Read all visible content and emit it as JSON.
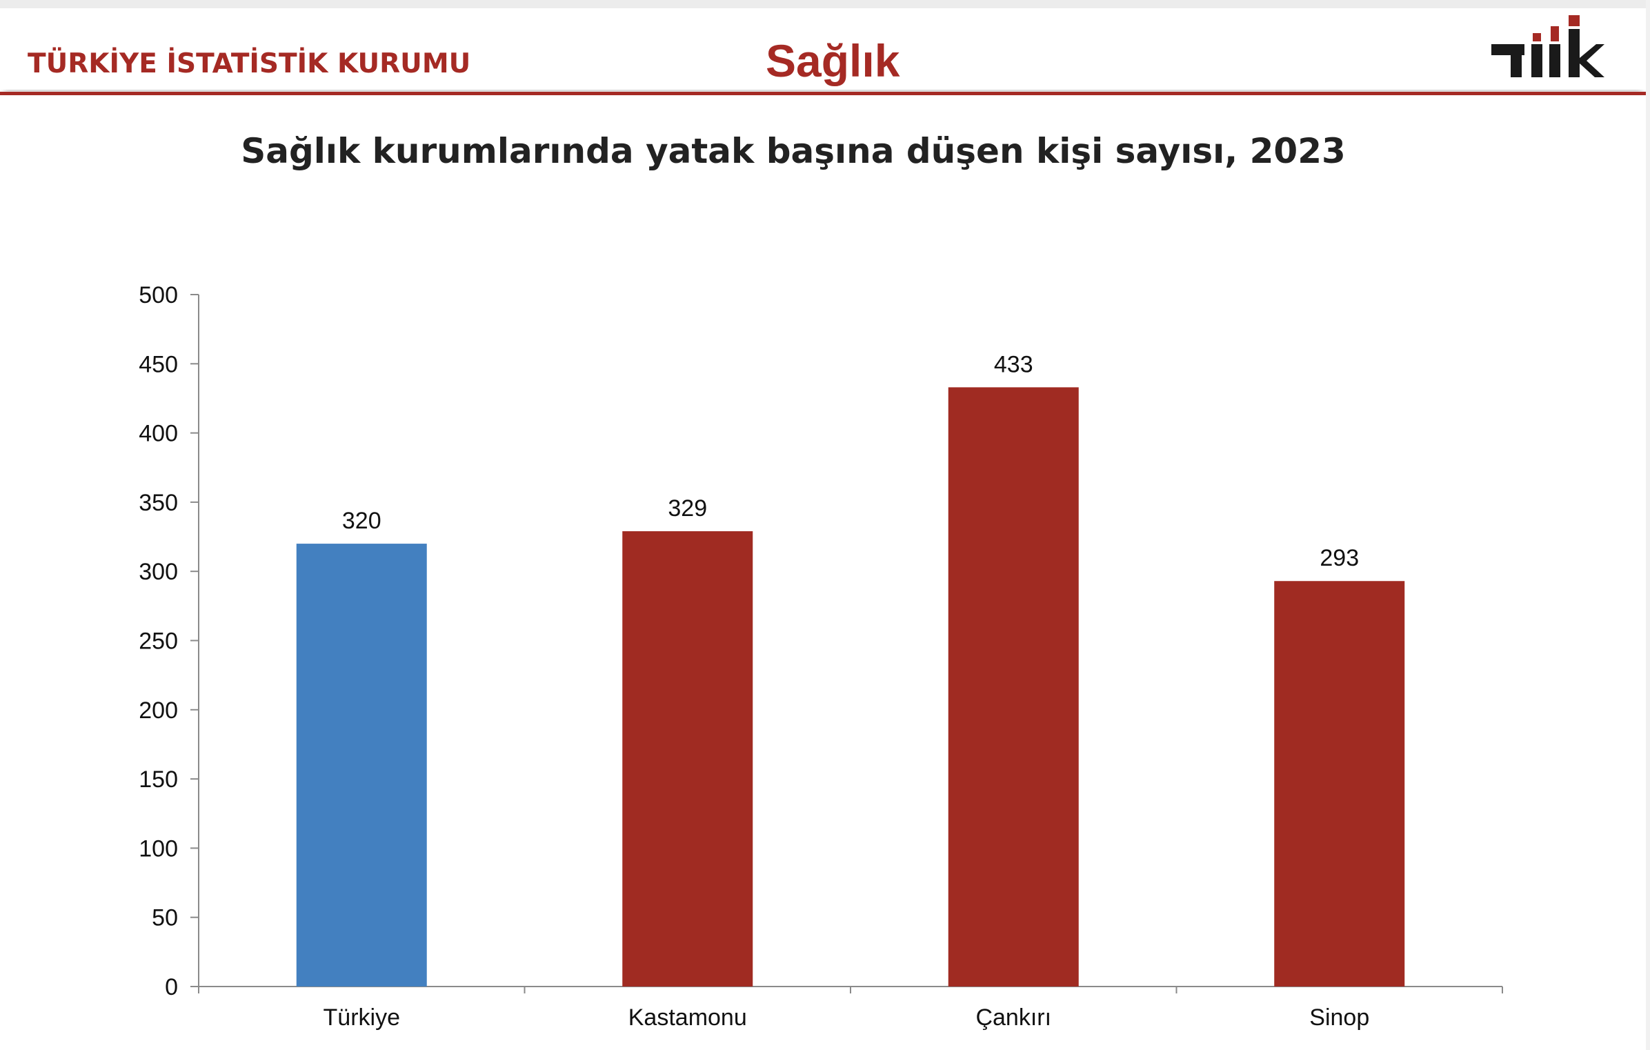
{
  "header": {
    "org_name": "TÜRKİYE İSTATİSTİK KURUMU",
    "section_title": "Sağlık",
    "logo_text": "TÜİK",
    "brand_color": "#a52a24"
  },
  "chart_data": {
    "type": "bar",
    "title": "Sağlık kurumlarında yatak başına düşen kişi sayısı, 2023",
    "categories": [
      "Türkiye",
      "Kastamonu",
      "Çankırı",
      "Sinop"
    ],
    "values": [
      320,
      329,
      433,
      293
    ],
    "bar_colors": [
      "#4380c0",
      "#a02b22",
      "#a02b22",
      "#a02b22"
    ],
    "ylim": [
      0,
      500
    ],
    "yticks": [
      0,
      50,
      100,
      150,
      200,
      250,
      300,
      350,
      400,
      450,
      500
    ],
    "grid": false,
    "data_labels": true,
    "xlabel": "",
    "ylabel": ""
  }
}
